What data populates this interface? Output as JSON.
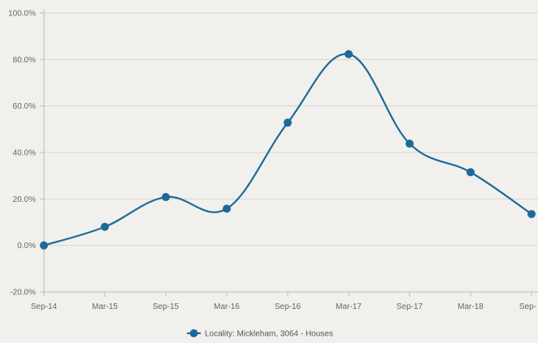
{
  "chart_data": {
    "type": "line",
    "title": "",
    "xlabel": "",
    "ylabel": "",
    "categories": [
      "Sep-14",
      "Mar-15",
      "Sep-15",
      "Mar-16",
      "Sep-16",
      "Mar-17",
      "Sep-17",
      "Mar-18",
      "Sep-"
    ],
    "ylim": [
      -20,
      100
    ],
    "y_ticks": [
      -20,
      0,
      20,
      40,
      60,
      80,
      100
    ],
    "y_tick_labels": [
      "-20.0%",
      "0.0%",
      "20.0%",
      "40.0%",
      "60.0%",
      "80.0%",
      "100.0%"
    ],
    "grid": "horizontal",
    "legend_position": "bottom-center",
    "series": [
      {
        "name": "Locality: Mickleham, 3064 - Houses",
        "color": "#1b6a9a",
        "values": [
          0.0,
          8.0,
          20.8,
          15.8,
          52.8,
          82.3,
          43.8,
          31.5,
          13.5
        ]
      }
    ]
  }
}
